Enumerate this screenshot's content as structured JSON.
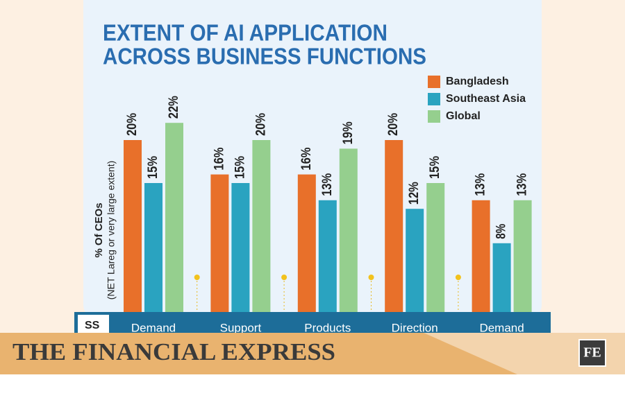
{
  "chart_data": {
    "type": "bar",
    "title": [
      "EXTENT OF AI APPLICATION",
      "ACROSS BUSINESS FUNCTIONS"
    ],
    "y_label": [
      "% Of CEOs",
      "(NET Lareg or very large extent)"
    ],
    "x_label_fragment": "SS",
    "categories": [
      "Demand",
      "Support",
      "Products",
      "Direction",
      "Demand"
    ],
    "series": [
      {
        "name": "Bangladesh",
        "color": "#e8702a",
        "values": [
          20,
          16,
          16,
          20,
          13
        ],
        "value_labels": [
          "20%",
          "16%",
          "16%",
          "20%",
          "13%"
        ]
      },
      {
        "name": "Southeast Asia",
        "color": "#2aa3c0",
        "values": [
          15,
          15,
          13,
          12,
          8
        ],
        "value_labels": [
          "15%",
          "15%",
          "13%",
          "12%",
          "8%"
        ]
      },
      {
        "name": "Global",
        "color": "#95cf8e",
        "values": [
          22,
          20,
          19,
          15,
          13
        ],
        "value_labels": [
          "22%",
          "20%",
          "19%",
          "15%",
          "13%"
        ]
      }
    ],
    "legend": "upper right"
  },
  "banner": {
    "title": "THE FINANCIAL EXPRESS",
    "logo": "FE"
  }
}
